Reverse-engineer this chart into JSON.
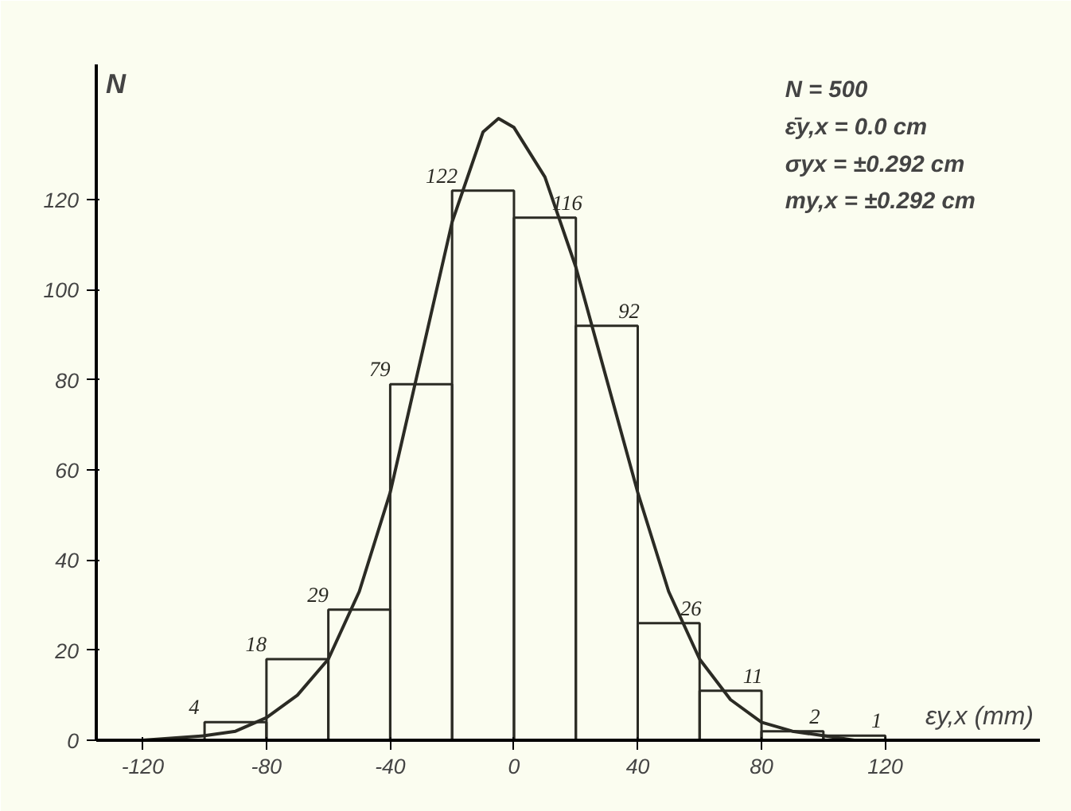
{
  "chart_data": {
    "type": "histogram",
    "xlabel": "εy,x (mm)",
    "ylabel": "N",
    "bins": [
      -100,
      -80,
      -60,
      -40,
      -20,
      0,
      20,
      40,
      60,
      80,
      100,
      120
    ],
    "values": [
      4,
      18,
      29,
      79,
      122,
      116,
      92,
      26,
      11,
      2,
      1
    ],
    "color": "#2b2b24",
    "value_labels": [
      "4",
      "18",
      "29",
      "79",
      "122",
      "116",
      "92",
      "26",
      "11",
      "2",
      "1"
    ],
    "series": [
      {
        "type": "line",
        "color": "#2b2b24",
        "x": [
          -120,
          -100,
          -90,
          -80,
          -70,
          -60,
          -50,
          -40,
          -30,
          -20,
          -10,
          -5,
          0,
          10,
          20,
          30,
          40,
          50,
          60,
          70,
          80,
          90,
          100,
          110
        ],
        "values": [
          0,
          1,
          2,
          5,
          10,
          18,
          33,
          55,
          85,
          115,
          135,
          138,
          136,
          125,
          105,
          80,
          55,
          33,
          18,
          9,
          4,
          2,
          1,
          0
        ]
      }
    ],
    "xlim": [
      -135,
      170
    ],
    "ylim": [
      0,
      150
    ],
    "xticks": [
      -120,
      -80,
      -40,
      0,
      40,
      80,
      120
    ],
    "yticks": [
      0,
      20,
      40,
      60,
      80,
      100,
      120
    ],
    "grid": false,
    "annotations": [
      "N = 500",
      "ε̄y,x = 0.0 cm",
      "σyx = ±0.292 cm",
      "my,x = ±0.292 cm"
    ]
  }
}
